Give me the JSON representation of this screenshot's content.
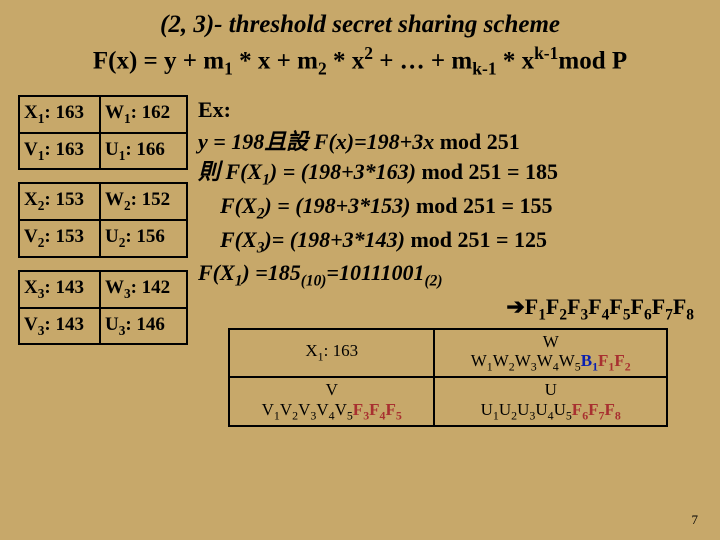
{
  "title": {
    "line1": "(2, 3)- threshold secret sharing scheme",
    "line2_html": "F(x) = y + m<sub>1</sub> * x + m<sub>2</sub> * x<sup>2</sup> + … + m<sub>k-1</sub> * x<sup>k-1</sup>mod P"
  },
  "left_tables": [
    [
      [
        "X<sub>1</sub>: 163",
        "W<sub>1</sub>: 162"
      ],
      [
        "V<sub>1</sub>: 163",
        "U<sub>1</sub>: 166"
      ]
    ],
    [
      [
        "X<sub>2</sub>: 153",
        "W<sub>2</sub>: 152"
      ],
      [
        "V<sub>2</sub>: 153",
        "U<sub>2</sub>: 156"
      ]
    ],
    [
      [
        "X<sub>3</sub>: 143",
        "W<sub>3</sub>: 142"
      ],
      [
        "V<sub>3</sub>: 143",
        "U<sub>3</sub>: 146"
      ]
    ]
  ],
  "example": {
    "heading": "Ex:",
    "lines": [
      "y = 198且設 F(x)=198+3x <span class='roman'>mod 251</span>",
      "則 F(X<sub>1</sub>) = (198+3*163) <span class='roman'>mod 251 = 185</span>",
      "<span class='indent'></span>F(X<sub>2</sub>) = (198+3*153) <span class='roman'>mod 251 = 155</span>",
      "<span class='indent'></span>F(X<sub>3</sub>)= (198+3*143) <span class='roman'>mod 251  = 125</span>",
      "F(X<sub>1</sub>) =185<sub>(10)</sub>=10111001<sub>(2)</sub>"
    ],
    "arrow_html": "➔F<sub>1</sub>F<sub>2</sub>F<sub>3</sub>F<sub>4</sub>F<sub>5</sub>F<sub>6</sub>F<sub>7</sub>F<sub>8</sub>"
  },
  "bottom_table": {
    "rows": [
      [
        "X<sub>1</sub>: 163",
        "W<br>W<sub>1</sub>W<sub>2</sub>W<sub>3</sub>W<sub>4</sub>W<sub>5</sub><span class='b'>B<sub>1</sub></span><span class='m'>F<sub>1</sub>F<sub>2</sub></span>"
      ],
      [
        "V<br>V<sub>1</sub>V<sub>2</sub>V<sub>3</sub>V<sub>4</sub>V<sub>5</sub><span class='m'>F<sub>3</sub>F<sub>4</sub>F<sub>5</sub></span>",
        "U<br>U<sub>1</sub>U<sub>2</sub>U<sub>3</sub>U<sub>4</sub>U<sub>5</sub><span class='m'>F<sub>6</sub>F<sub>7</sub>F<sub>8</sub></span>"
      ]
    ]
  },
  "page_number": "7"
}
